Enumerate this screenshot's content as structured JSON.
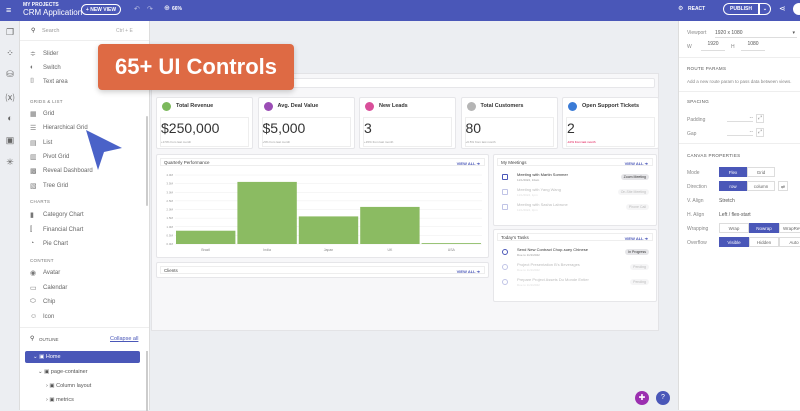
{
  "topbar": {
    "project_label": "MY PROJECTS",
    "app_title": "CRM Application",
    "new_view": "+ NEW VIEW",
    "zoom": "66%",
    "framework": "REACT",
    "publish": "PUBLISH"
  },
  "left_panel": {
    "search_placeholder": "Search",
    "search_shortcut": "Ctrl + E",
    "items_top": [
      "Slider",
      "Switch",
      "Text area"
    ],
    "grids_header": "GRIDS & LIST",
    "grids": [
      "Grid",
      "Hierarchical Grid",
      "List",
      "Pivot Grid",
      "Reveal Dashboard",
      "Tree Grid"
    ],
    "charts_header": "CHARTS",
    "charts": [
      "Category Chart",
      "Financial Chart",
      "Pie Chart"
    ],
    "content_header": "CONTENT",
    "content": [
      "Avatar",
      "Calendar",
      "Chip",
      "Icon"
    ],
    "outline_label": "OUTLINE",
    "collapse_all": "Collapse all",
    "tree": [
      "Home",
      "page-container",
      "Column layout",
      "metrics"
    ]
  },
  "banner": "65+ UI Controls",
  "kpis": [
    {
      "label": "Total Revenue",
      "value": "$250,000",
      "delta": "+3.5% from last month",
      "color": "#7cb95c"
    },
    {
      "label": "Avg. Deal Value",
      "value": "$5,000",
      "delta": "+5% from last month",
      "color": "#9b4db5"
    },
    {
      "label": "New Leads",
      "value": "3",
      "delta": "+15% from last month",
      "color": "#d94f9a"
    },
    {
      "label": "Total Customers",
      "value": "80",
      "delta": "+6.5% from last month",
      "color": "#b5b5b5"
    },
    {
      "label": "Open Support Tickets",
      "value": "2",
      "delta": "-10% from last month",
      "color": "#3b7bd6"
    }
  ],
  "quarterly": {
    "title": "Quarterly Performance",
    "view_all": "VIEW ALL"
  },
  "clients": {
    "title": "Clients",
    "view_all": "VIEW ALL"
  },
  "meetings": {
    "title": "My Meetings",
    "view_all": "VIEW ALL",
    "rows": [
      {
        "title": "Meeting with Martin Sommer",
        "sub": "11/1/2022, 10am",
        "badge": "Zoom Meeting"
      },
      {
        "title": "Meeting with Yang Wang",
        "sub": "11/1/2022, 1pm",
        "badge": "On-Site Meeting"
      },
      {
        "title": "Meeting with Sasha Labrune",
        "sub": "11/1/2022, 3pm",
        "badge": "Phone Call"
      }
    ]
  },
  "tasks": {
    "title": "Today's Tasks",
    "view_all": "VIEW ALL",
    "rows": [
      {
        "title": "Send New Contract Chop-suey Chinese",
        "sub": "Due to 11/1/2022",
        "badge": "In Progress"
      },
      {
        "title": "Project Presentation B's Beverages",
        "sub": "Due to 11/1/2022",
        "badge": "Pending"
      },
      {
        "title": "Prepare Project Assets Du Monde Entier",
        "sub": "Due to 11/1/2022",
        "badge": "Pending"
      }
    ]
  },
  "chart_data": {
    "type": "bar",
    "title": "Quarterly Performance",
    "categories": [
      "Brazil",
      "India",
      "Japan",
      "UK",
      "USA"
    ],
    "values": [
      0.77,
      3.6,
      1.6,
      2.15,
      0.05
    ],
    "ylim": [
      0,
      4
    ],
    "yticks": [
      "0.0M",
      "0.5M",
      "1.0M",
      "1.5M",
      "2.0M",
      "2.5M",
      "3.0M",
      "3.5M",
      "4.0M"
    ],
    "color": "#8bbb62"
  },
  "right_panel": {
    "viewport_label": "Viewport",
    "viewport": "1920 x 1080",
    "w_label": "W",
    "w": "1920",
    "h_label": "H",
    "h": "1080",
    "route_header": "ROUTE PARAMS",
    "route_text": "Add a new route param to pass data between views.",
    "spacing_header": "SPACING",
    "padding_label": "Padding",
    "gap_label": "Gap",
    "dash": "--",
    "canvas_header": "CANVAS PROPERTIES",
    "mode_label": "Mode",
    "mode": [
      "Flex",
      "Grid"
    ],
    "direction_label": "Direction",
    "direction": [
      "row",
      "column"
    ],
    "valign_label": "V. Align",
    "valign": "Stretch",
    "halign_label": "H. Align",
    "halign": "Left / flex-start",
    "wrapping_label": "Wrapping",
    "wrapping": [
      "Wrap",
      "Nowrap",
      "WrapReverse"
    ],
    "overflow_label": "Overflow",
    "overflow": [
      "Visible",
      "Hidden",
      "Auto"
    ]
  },
  "accent": "#4a57b8"
}
